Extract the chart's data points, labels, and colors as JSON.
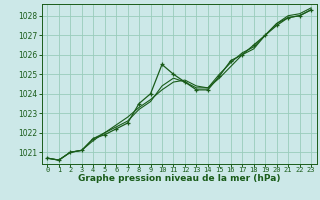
{
  "title": "Graphe pression niveau de la mer (hPa)",
  "bg_color": "#cce8e8",
  "grid_color": "#99ccbb",
  "line_color": "#1a5c1a",
  "text_color": "#1a5c1a",
  "xlim": [
    -0.5,
    23.5
  ],
  "ylim": [
    1020.4,
    1028.6
  ],
  "yticks": [
    1021,
    1022,
    1023,
    1024,
    1025,
    1026,
    1027,
    1028
  ],
  "xticks": [
    0,
    1,
    2,
    3,
    4,
    5,
    6,
    7,
    8,
    9,
    10,
    11,
    12,
    13,
    14,
    15,
    16,
    17,
    18,
    19,
    20,
    21,
    22,
    23
  ],
  "series": [
    [
      1020.7,
      1020.6,
      1021.0,
      1021.1,
      1021.7,
      1021.9,
      1022.2,
      1022.5,
      1023.5,
      1024.0,
      1025.5,
      1025.0,
      1024.6,
      1024.2,
      1024.2,
      1024.9,
      1025.7,
      1026.0,
      1026.5,
      1027.0,
      1027.5,
      1027.9,
      1028.0,
      1028.3
    ],
    [
      1020.7,
      1020.6,
      1021.0,
      1021.1,
      1021.6,
      1022.0,
      1022.3,
      1022.6,
      1023.2,
      1023.6,
      1024.4,
      1024.8,
      1024.6,
      1024.3,
      1024.3,
      1024.8,
      1025.4,
      1026.0,
      1026.3,
      1027.0,
      1027.6,
      1027.9,
      1028.0,
      1028.3
    ],
    [
      1020.7,
      1020.6,
      1021.0,
      1021.1,
      1021.7,
      1022.0,
      1022.4,
      1022.8,
      1023.3,
      1023.7,
      1024.2,
      1024.6,
      1024.7,
      1024.4,
      1024.3,
      1025.0,
      1025.6,
      1026.1,
      1026.4,
      1027.0,
      1027.6,
      1028.0,
      1028.1,
      1028.4
    ]
  ],
  "title_fontsize": 6.5,
  "tick_fontsize": 5.5,
  "xtick_fontsize": 5.0
}
